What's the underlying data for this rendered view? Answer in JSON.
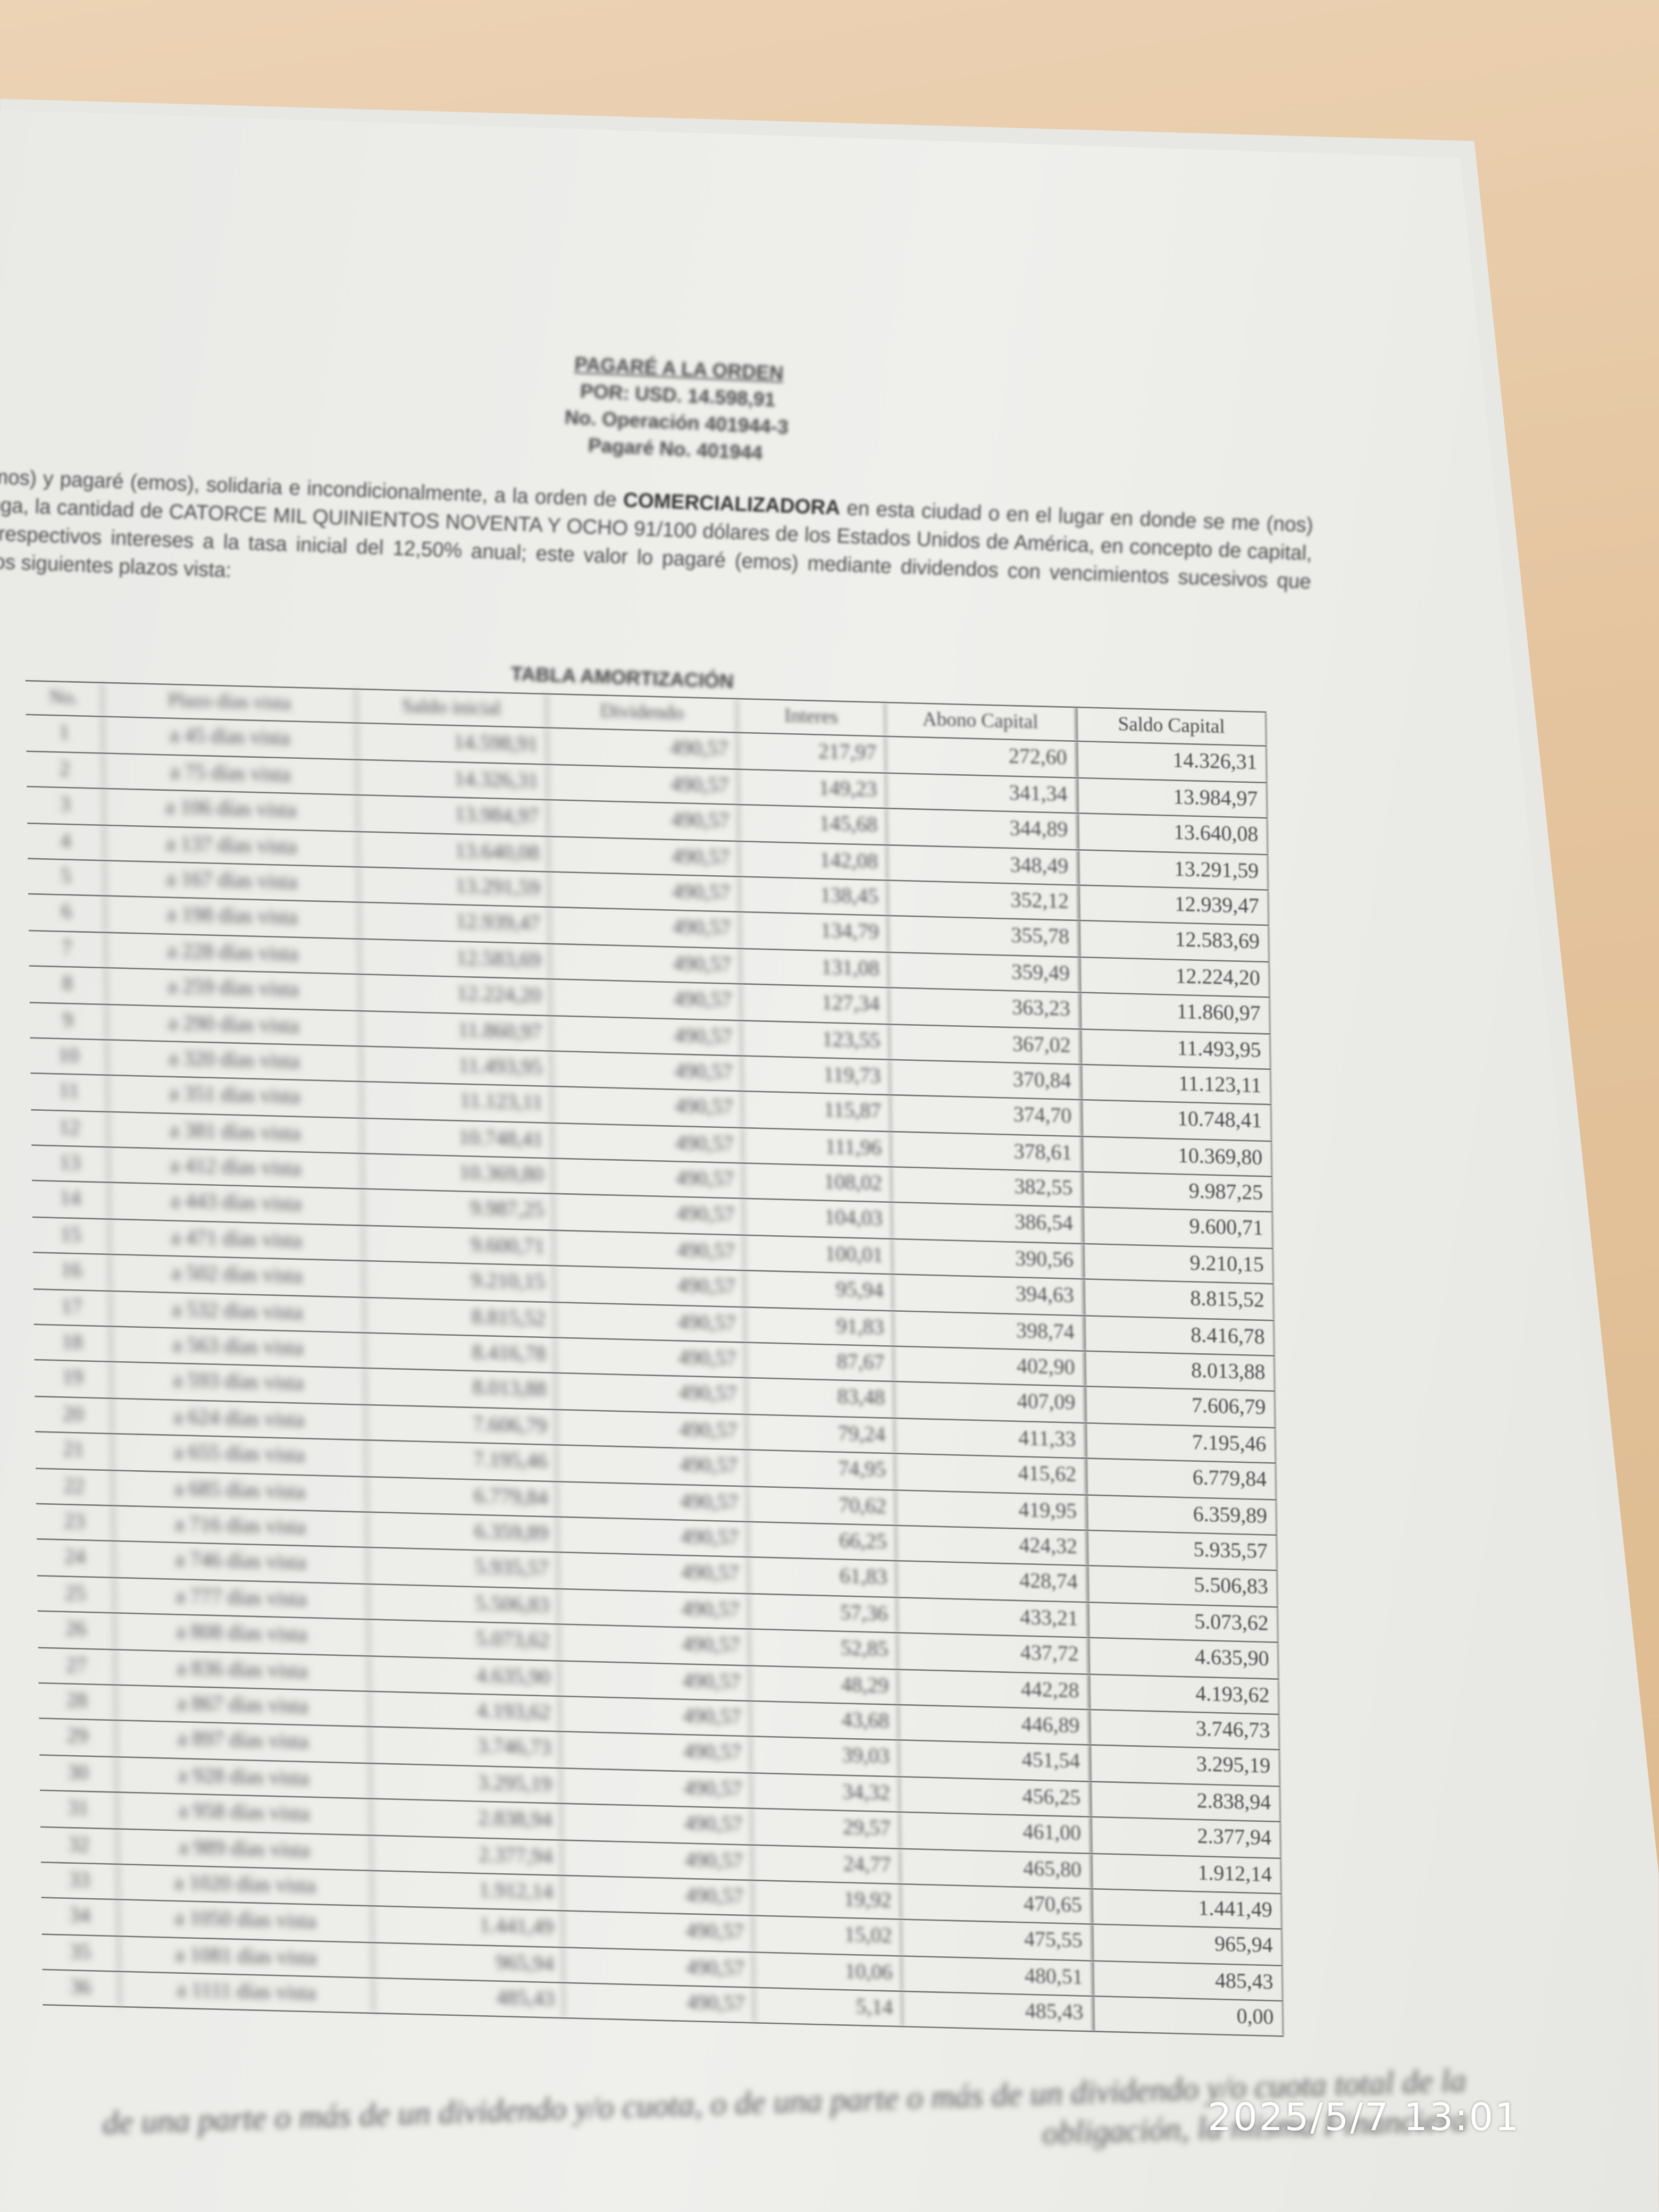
{
  "document": {
    "title_lines": [
      "PAGARÉ A LA ORDEN",
      "POR: USD. 14.598,91",
      "No. Operación 401944-3",
      "Pagaré No. 401944"
    ],
    "paragraph": {
      "before_bold": "Debo (emos) y pagaré (emos), solidaria e incondicionalmente, a la orden de ",
      "bold_creditor": "COMERCIALIZADORA",
      "after_bold": " en esta ciudad o en el lugar en donde se me (nos) reconvenga, la cantidad de CATORCE MIL QUINIENTOS NOVENTA Y OCHO 91/100 dólares de los Estados Unidos de América, en concepto de capital, más los respectivos intereses a la tasa inicial del 12,50% anual; este valor lo pagaré (emos) mediante dividendos con vencimientos sucesivos que tendrán los siguientes plazos vista:"
    },
    "table_title": "TABLA AMORTIZACIÓN",
    "table_headers": [
      "No.",
      "Plazo días vista",
      "Saldo inicial",
      "Dividendo",
      "Interes",
      "Abono Capital",
      "Saldo Capital"
    ],
    "table_rows": [
      [
        "1",
        "a 45 días vista",
        "14.598,91",
        "490,57",
        "217,97",
        "272,60",
        "14.326,31"
      ],
      [
        "2",
        "a 75 días vista",
        "14.326,31",
        "490,57",
        "149,23",
        "341,34",
        "13.984,97"
      ],
      [
        "3",
        "a 106 días vista",
        "13.984,97",
        "490,57",
        "145,68",
        "344,89",
        "13.640,08"
      ],
      [
        "4",
        "a 137 días vista",
        "13.640,08",
        "490,57",
        "142,08",
        "348,49",
        "13.291,59"
      ],
      [
        "5",
        "a 167 días vista",
        "13.291,59",
        "490,57",
        "138,45",
        "352,12",
        "12.939,47"
      ],
      [
        "6",
        "a 198 días vista",
        "12.939,47",
        "490,57",
        "134,79",
        "355,78",
        "12.583,69"
      ],
      [
        "7",
        "a 228 días vista",
        "12.583,69",
        "490,57",
        "131,08",
        "359,49",
        "12.224,20"
      ],
      [
        "8",
        "a 259 días vista",
        "12.224,20",
        "490,57",
        "127,34",
        "363,23",
        "11.860,97"
      ],
      [
        "9",
        "a 290 días vista",
        "11.860,97",
        "490,57",
        "123,55",
        "367,02",
        "11.493,95"
      ],
      [
        "10",
        "a 320 días vista",
        "11.493,95",
        "490,57",
        "119,73",
        "370,84",
        "11.123,11"
      ],
      [
        "11",
        "a 351 días vista",
        "11.123,11",
        "490,57",
        "115,87",
        "374,70",
        "10.748,41"
      ],
      [
        "12",
        "a 381 días vista",
        "10.748,41",
        "490,57",
        "111,96",
        "378,61",
        "10.369,80"
      ],
      [
        "13",
        "a 412 días vista",
        "10.369,80",
        "490,57",
        "108,02",
        "382,55",
        "9.987,25"
      ],
      [
        "14",
        "a 443 días vista",
        "9.987,25",
        "490,57",
        "104,03",
        "386,54",
        "9.600,71"
      ],
      [
        "15",
        "a 471 días vista",
        "9.600,71",
        "490,57",
        "100,01",
        "390,56",
        "9.210,15"
      ],
      [
        "16",
        "a 502 días vista",
        "9.210,15",
        "490,57",
        "95,94",
        "394,63",
        "8.815,52"
      ],
      [
        "17",
        "a 532 días vista",
        "8.815,52",
        "490,57",
        "91,83",
        "398,74",
        "8.416,78"
      ],
      [
        "18",
        "a 563 días vista",
        "8.416,78",
        "490,57",
        "87,67",
        "402,90",
        "8.013,88"
      ],
      [
        "19",
        "a 593 días vista",
        "8.013,88",
        "490,57",
        "83,48",
        "407,09",
        "7.606,79"
      ],
      [
        "20",
        "a 624 días vista",
        "7.606,79",
        "490,57",
        "79,24",
        "411,33",
        "7.195,46"
      ],
      [
        "21",
        "a 655 días vista",
        "7.195,46",
        "490,57",
        "74,95",
        "415,62",
        "6.779,84"
      ],
      [
        "22",
        "a 685 días vista",
        "6.779,84",
        "490,57",
        "70,62",
        "419,95",
        "6.359,89"
      ],
      [
        "23",
        "a 716 días vista",
        "6.359,89",
        "490,57",
        "66,25",
        "424,32",
        "5.935,57"
      ],
      [
        "24",
        "a 746 días vista",
        "5.935,57",
        "490,57",
        "61,83",
        "428,74",
        "5.506,83"
      ],
      [
        "25",
        "a 777 días vista",
        "5.506,83",
        "490,57",
        "57,36",
        "433,21",
        "5.073,62"
      ],
      [
        "26",
        "a 808 días vista",
        "5.073,62",
        "490,57",
        "52,85",
        "437,72",
        "4.635,90"
      ],
      [
        "27",
        "a 836 días vista",
        "4.635,90",
        "490,57",
        "48,29",
        "442,28",
        "4.193,62"
      ],
      [
        "28",
        "a 867 días vista",
        "4.193,62",
        "490,57",
        "43,68",
        "446,89",
        "3.746,73"
      ],
      [
        "29",
        "a 897 días vista",
        "3.746,73",
        "490,57",
        "39,03",
        "451,54",
        "3.295,19"
      ],
      [
        "30",
        "a 928 días vista",
        "3.295,19",
        "490,57",
        "34,32",
        "456,25",
        "2.838,94"
      ],
      [
        "31",
        "a 958 días vista",
        "2.838,94",
        "490,57",
        "29,57",
        "461,00",
        "2.377,94"
      ],
      [
        "32",
        "a 989 días vista",
        "2.377,94",
        "490,57",
        "24,77",
        "465,80",
        "1.912,14"
      ],
      [
        "33",
        "a 1020 días vista",
        "1.912,14",
        "490,57",
        "19,92",
        "470,65",
        "1.441,49"
      ],
      [
        "34",
        "a 1050 días vista",
        "1.441,49",
        "490,57",
        "15,02",
        "475,55",
        "965,94"
      ],
      [
        "35",
        "a 1081 días vista",
        "965,94",
        "490,57",
        "10,06",
        "480,51",
        "485,43"
      ],
      [
        "36",
        "a 1111 días vista",
        "485,43",
        "490,57",
        "5,14",
        "485,43",
        "0,00"
      ]
    ],
    "footer_text": "de una parte o más de un dividendo y/o cuota, o de una parte o más de un dividendo y/o cuota total de la obligación, la misma Financiera"
  },
  "camera_timestamp": "2025/5/7 13:01",
  "colors": {
    "paper": "#efefec",
    "desk": "#e2bf95",
    "ink": "#4a4a4a",
    "timestamp": "#ffffff"
  }
}
